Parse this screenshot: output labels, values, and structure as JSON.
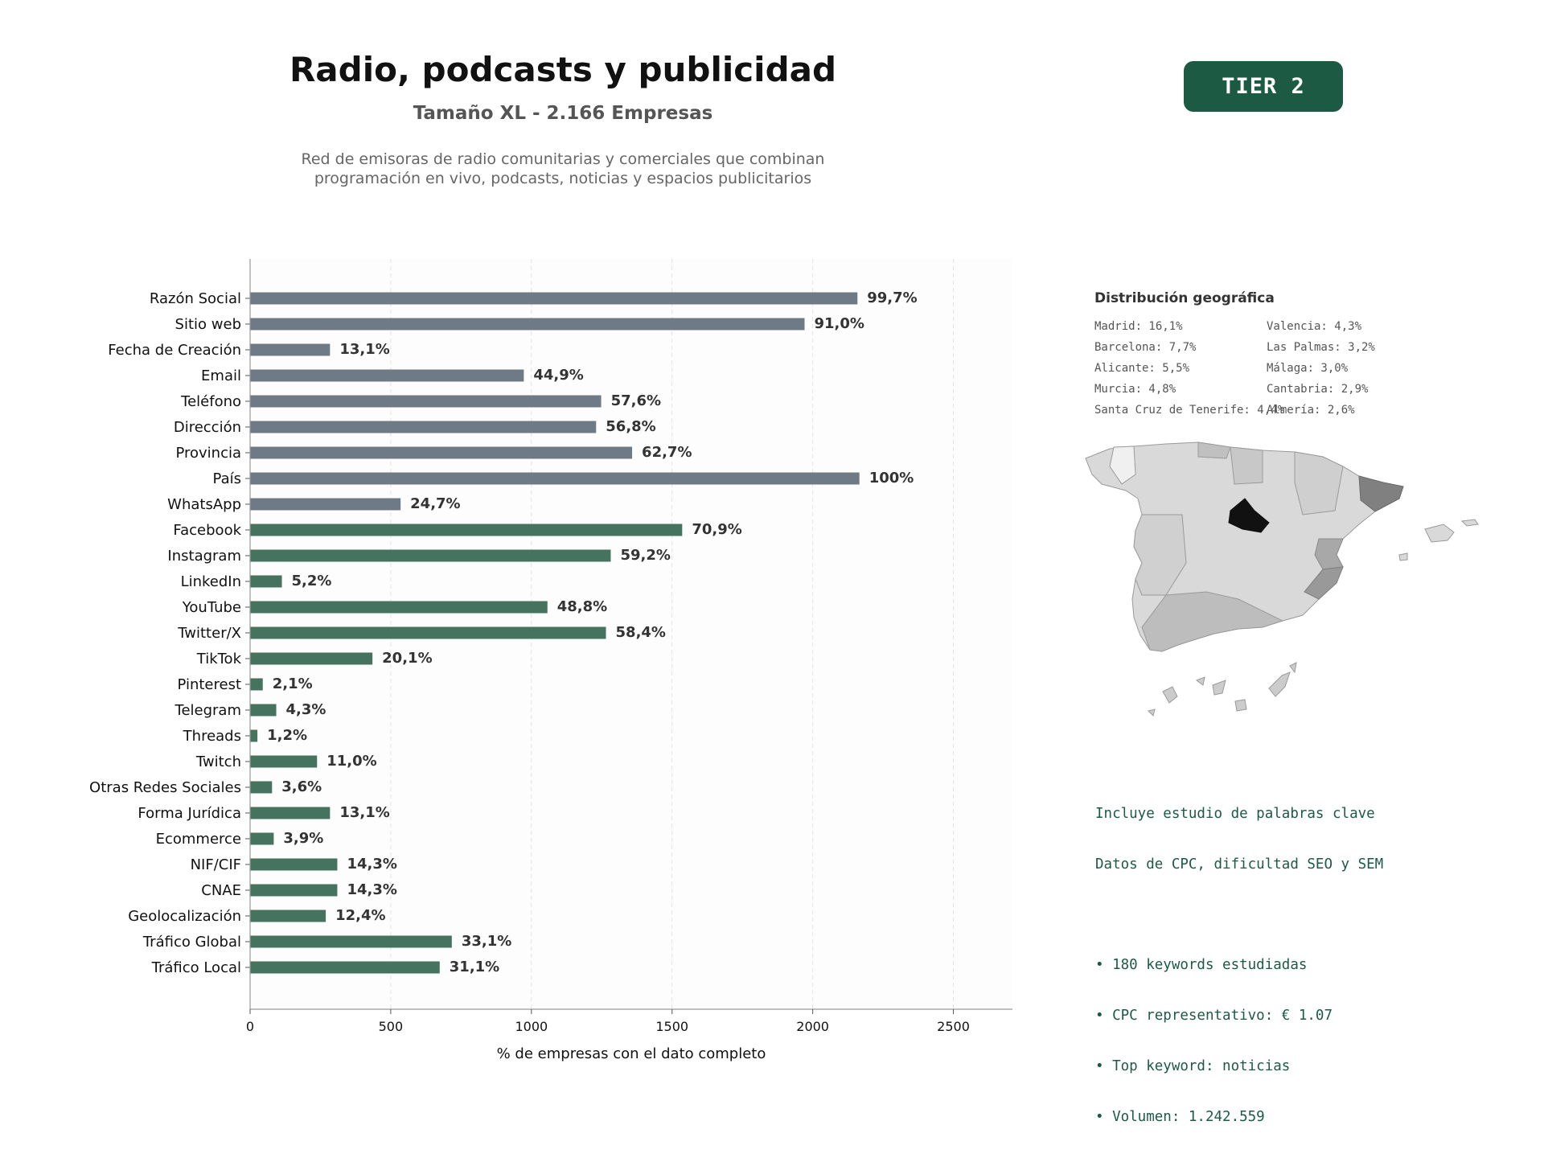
{
  "header": {
    "title": "Radio, podcasts y publicidad",
    "subtitle": "Tamaño XL - 2.166 Empresas",
    "description": [
      "Red de emisoras de radio comunitarias y comerciales que combinan",
      "programación en vivo, podcasts, noticias y espacios publicitarios"
    ],
    "tier": "TIER 2"
  },
  "colors": {
    "gray_bar": "#6e7a86",
    "green_bar": "#45735f",
    "badge": "#1d5a44",
    "keyword_text": "#1d5a44",
    "madrid": "#111111",
    "barcelona": "#808080"
  },
  "chart_data": {
    "type": "bar",
    "orientation": "horizontal",
    "xlabel": "% de empresas con el dato completo",
    "xlim": [
      0,
      2710
    ],
    "xticks": [
      0,
      500,
      1000,
      1500,
      2000,
      2500
    ],
    "grid": "x",
    "categories": [
      "Razón Social",
      "Sitio web",
      "Fecha de Creación",
      "Email",
      "Teléfono",
      "Dirección",
      "Provincia",
      "País",
      "WhatsApp",
      "Facebook",
      "Instagram",
      "LinkedIn",
      "YouTube",
      "Twitter/X",
      "TikTok",
      "Pinterest",
      "Telegram",
      "Threads",
      "Twitch",
      "Otras Redes Sociales",
      "Forma Jurídica",
      "Ecommerce",
      "NIF/CIF",
      "CNAE",
      "Geolocalización",
      "Tráfico Global",
      "Tráfico Local"
    ],
    "values": [
      2159,
      1971,
      284,
      973,
      1248,
      1230,
      1358,
      2166,
      535,
      1536,
      1282,
      113,
      1057,
      1265,
      435,
      45,
      93,
      26,
      238,
      78,
      284,
      84,
      310,
      310,
      269,
      717,
      674
    ],
    "labels": [
      "99,7%",
      "91,0%",
      "13,1%",
      "44,9%",
      "57,6%",
      "56,8%",
      "62,7%",
      "100%",
      "24,7%",
      "70,9%",
      "59,2%",
      "5,2%",
      "48,8%",
      "58,4%",
      "20,1%",
      "2,1%",
      "4,3%",
      "1,2%",
      "11,0%",
      "3,6%",
      "13,1%",
      "3,9%",
      "14,3%",
      "14,3%",
      "12,4%",
      "33,1%",
      "31,1%"
    ],
    "groups": [
      "gray",
      "gray",
      "gray",
      "gray",
      "gray",
      "gray",
      "gray",
      "gray",
      "gray",
      "green",
      "green",
      "green",
      "green",
      "green",
      "green",
      "green",
      "green",
      "green",
      "green",
      "green",
      "green",
      "green",
      "green",
      "green",
      "green",
      "green",
      "green"
    ]
  },
  "geo": {
    "title": "Distribución geográfica",
    "items": [
      "Madrid: 16,1%",
      "Barcelona: 7,7%",
      "Alicante: 5,5%",
      "Murcia: 4,8%",
      "Santa Cruz de Tenerife: 4,4%",
      "Valencia: 4,3%",
      "Las Palmas: 3,2%",
      "Málaga: 3,0%",
      "Cantabria: 2,9%",
      "Almería: 2,6%"
    ]
  },
  "keywords": {
    "lines": [
      "Incluye estudio de palabras clave",
      "Datos de CPC, dificultad SEO y SEM"
    ],
    "bullets": [
      "• 180 keywords estudiadas",
      "• CPC representativo: € 1.07",
      "• Top keyword: noticias",
      "• Volumen: 1.242.559"
    ]
  }
}
